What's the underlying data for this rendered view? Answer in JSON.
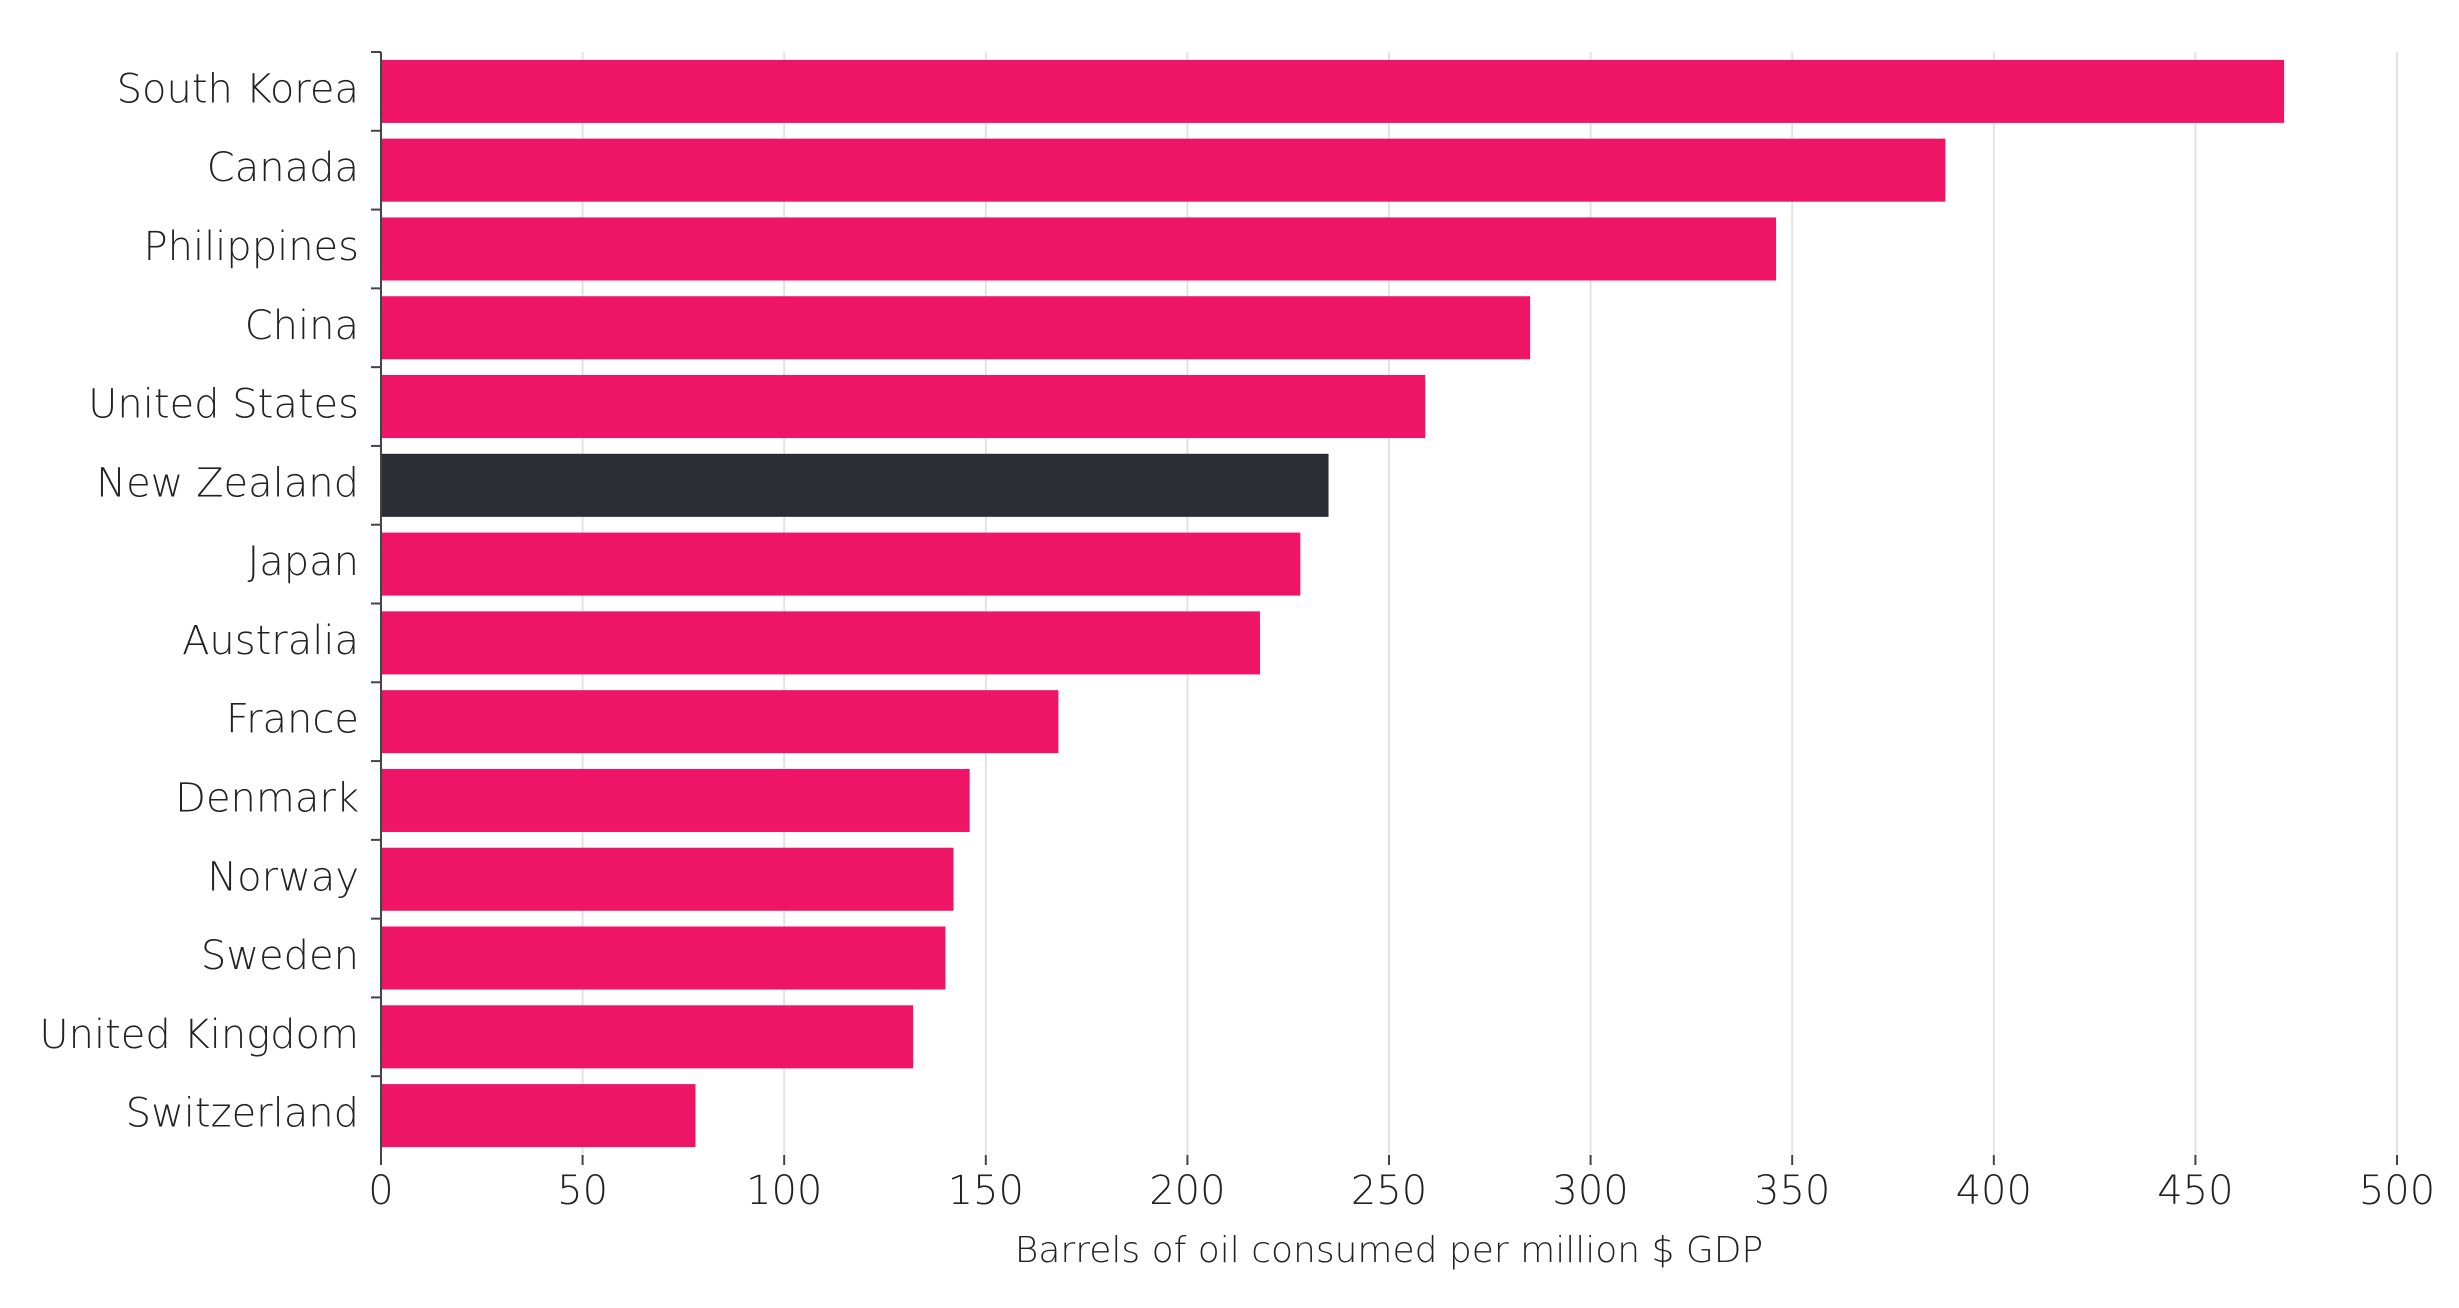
{
  "chart_data": {
    "type": "barh",
    "xlabel": "Barrels of oil consumed per million $ GDP",
    "categories": [
      "South Korea",
      "Canada",
      "Philippines",
      "China",
      "United States",
      "New Zealand",
      "Japan",
      "Australia",
      "France",
      "Denmark",
      "Norway",
      "Sweden",
      "United Kingdom",
      "Switzerland"
    ],
    "values": [
      472,
      388,
      346,
      285,
      259,
      235,
      228,
      218,
      168,
      146,
      142,
      140,
      132,
      78
    ],
    "colors": [
      "#ee1466",
      "#ee1466",
      "#ee1466",
      "#ee1466",
      "#ee1466",
      "#2b2d35",
      "#ee1466",
      "#ee1466",
      "#ee1466",
      "#ee1466",
      "#ee1466",
      "#ee1466",
      "#ee1466",
      "#ee1466"
    ],
    "xlim": [
      0,
      500
    ],
    "xticks": [
      0,
      50,
      100,
      150,
      200,
      250,
      300,
      350,
      400,
      450,
      500
    ],
    "grid": true
  }
}
